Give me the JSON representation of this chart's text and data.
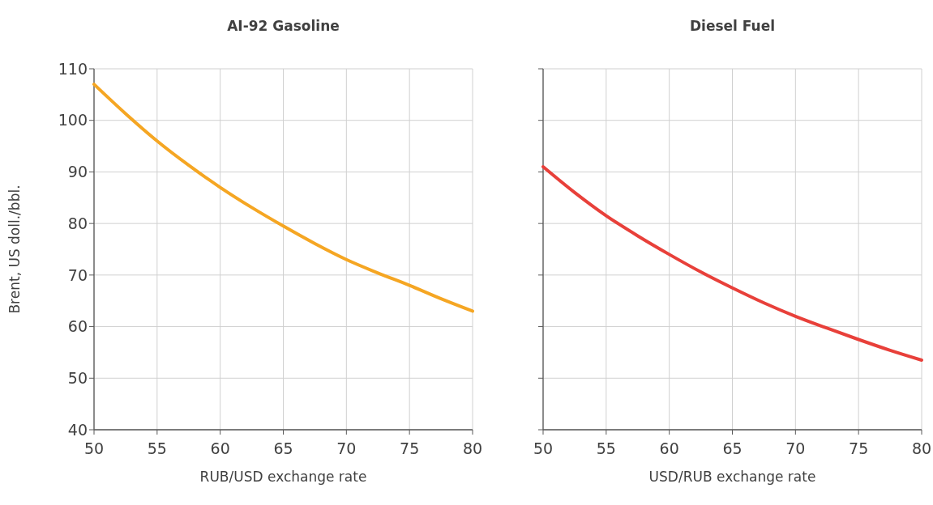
{
  "chart_data": [
    {
      "type": "line",
      "title": "AI-92 Gasoline",
      "xlabel": "RUB/USD exchange rate",
      "ylabel": "Brent, US doll./bbl.",
      "x": [
        50,
        52.5,
        55,
        57.5,
        60,
        62.5,
        65,
        67.5,
        70,
        72.5,
        75,
        77.5,
        80
      ],
      "series": [
        {
          "color": "#f5a623",
          "values": [
            107,
            101.3,
            96,
            91.3,
            87,
            83.1,
            79.5,
            76.1,
            73,
            70.4,
            68,
            65.4,
            63
          ]
        }
      ],
      "xlim": [
        50,
        80
      ],
      "xticks": [
        50,
        55,
        60,
        65,
        70,
        75,
        80
      ],
      "ylim": [
        40,
        110
      ],
      "yticks": [
        40,
        50,
        60,
        70,
        80,
        90,
        100,
        110
      ],
      "grid": true
    },
    {
      "type": "line",
      "title": "Diesel Fuel",
      "xlabel": "USD/RUB exchange rate",
      "x": [
        50,
        52.5,
        55,
        57.5,
        60,
        62.5,
        65,
        67.5,
        70,
        72.5,
        75,
        77.5,
        80
      ],
      "series": [
        {
          "color": "#e8403a",
          "values": [
            91,
            86,
            81.5,
            77.6,
            74,
            70.6,
            67.5,
            64.6,
            62,
            59.7,
            57.5,
            55.4,
            53.5
          ]
        }
      ],
      "xlim": [
        50,
        80
      ],
      "xticks": [
        50,
        55,
        60,
        65,
        70,
        75,
        80
      ],
      "ylim": [
        40,
        110
      ],
      "yticks": [
        40,
        50,
        60,
        70,
        80,
        90,
        100,
        110
      ],
      "grid": true,
      "tick_labels": "x"
    }
  ]
}
